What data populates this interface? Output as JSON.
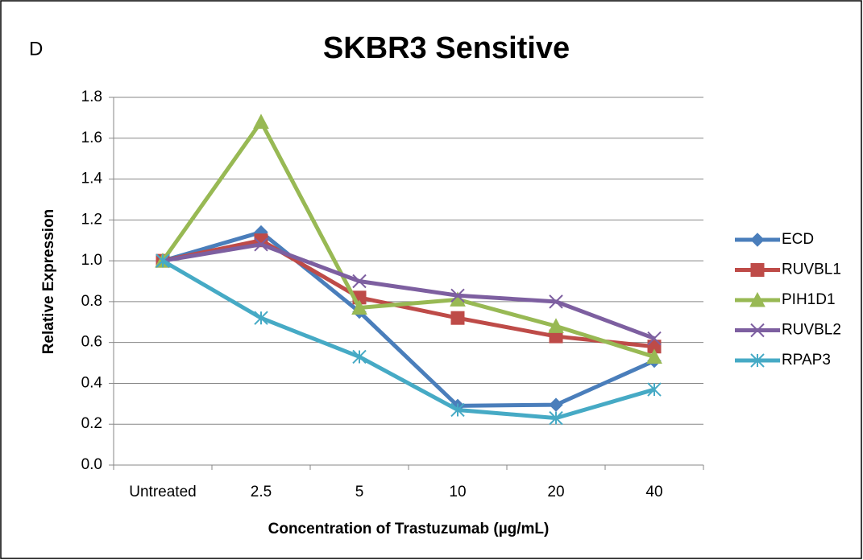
{
  "chart_data": {
    "type": "line",
    "annotation": "D",
    "title": "SKBR3 Sensitive",
    "x_label": "Concentration of Trastuzumab (µg/mL)",
    "y_label": "Relative Expression",
    "categories": [
      "Untreated",
      "2.5",
      "5",
      "10",
      "20",
      "40"
    ],
    "series": [
      {
        "name": "ECD",
        "color": "#4a7ebb",
        "marker": "diamond",
        "values": [
          1.0,
          1.14,
          0.75,
          0.29,
          0.295,
          0.51
        ]
      },
      {
        "name": "RUVBL1",
        "color": "#be4b48",
        "marker": "square",
        "values": [
          1.0,
          1.1,
          0.82,
          0.72,
          0.63,
          0.58
        ]
      },
      {
        "name": "PIH1D1",
        "color": "#98b954",
        "marker": "triangle",
        "values": [
          1.0,
          1.68,
          0.77,
          0.81,
          0.68,
          0.53
        ]
      },
      {
        "name": "RUVBL2",
        "color": "#7d5fa0",
        "marker": "x",
        "values": [
          1.0,
          1.08,
          0.9,
          0.83,
          0.8,
          0.62
        ]
      },
      {
        "name": "RPAP3",
        "color": "#46aac5",
        "marker": "asterisk",
        "values": [
          1.0,
          0.72,
          0.53,
          0.27,
          0.23,
          0.37
        ]
      }
    ],
    "ylim": [
      0,
      1.8
    ],
    "yticks": [
      {
        "value": 0,
        "label": "0.0"
      },
      0.2,
      0.4,
      0.6,
      0.8,
      {
        "value": 1,
        "label": "1.0"
      },
      1.2,
      1.4,
      1.6,
      1.8
    ],
    "grid": true,
    "legend": "right"
  }
}
